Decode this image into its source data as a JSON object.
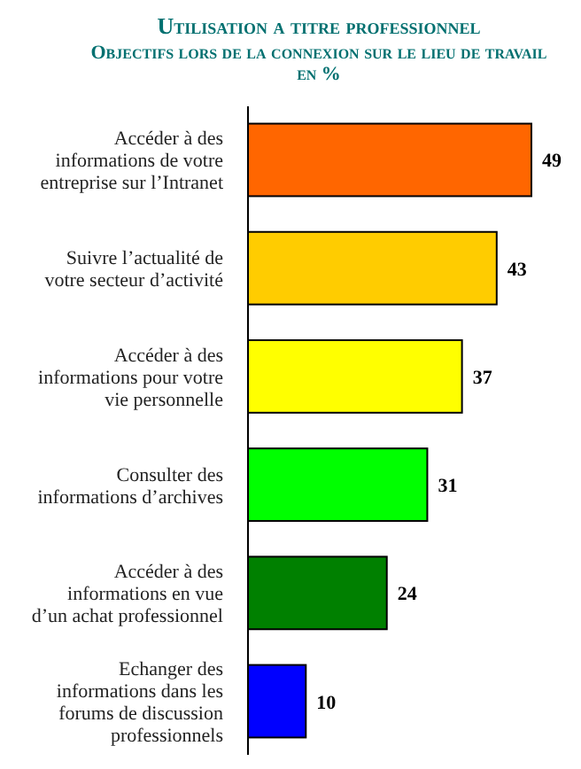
{
  "chart_data": {
    "type": "bar",
    "orientation": "horizontal",
    "title": "Utilisation a titre professionnel",
    "subtitle": "Objectifs lors de la connexion sur le lieu de travail en %",
    "categories": [
      "Accéder à des informations de votre entreprise sur l’Intranet",
      "Suivre l’actualité de votre secteur d’activité",
      "Accéder à des informations pour votre vie personnelle",
      "Consulter des informations d’archives",
      "Accéder à des informations en vue d’un achat professionnel",
      "Echanger des informations dans les forums de discussion professionnels"
    ],
    "values": [
      49,
      43,
      37,
      31,
      24,
      10
    ],
    "colors": [
      "#ff6600",
      "#ffcc00",
      "#ffff00",
      "#00ff00",
      "#008000",
      "#0000ff"
    ],
    "data_labels": true
  }
}
